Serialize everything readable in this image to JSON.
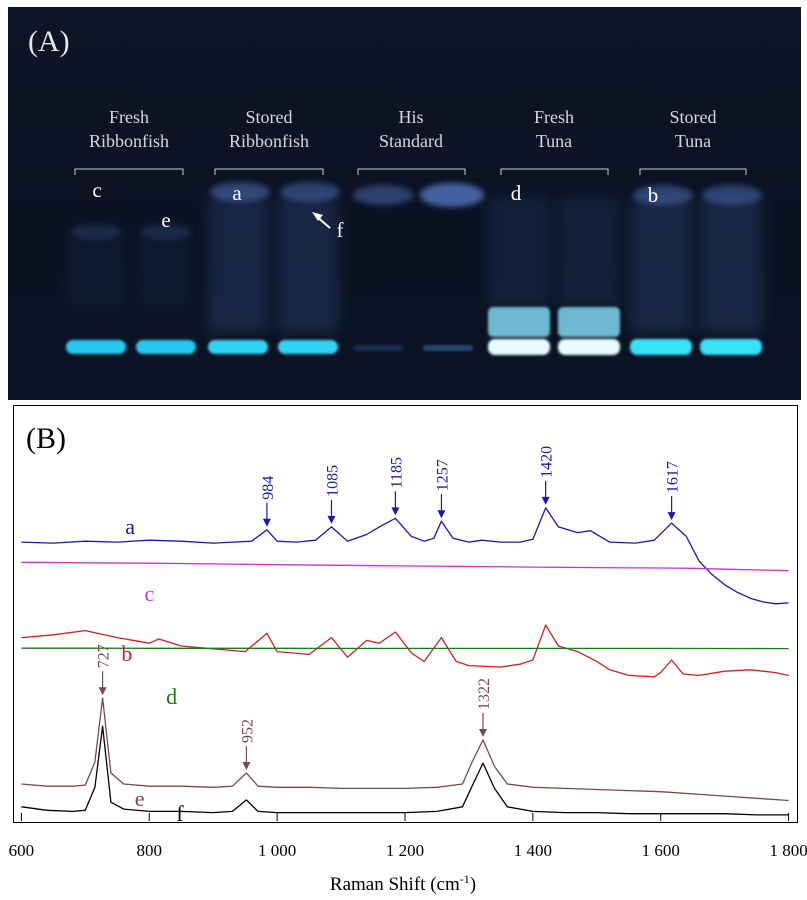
{
  "panel_a": {
    "label": "(A)",
    "groups": [
      {
        "line1": "Fresh",
        "line2": "Ribbonfish"
      },
      {
        "line1": "Stored",
        "line2": "Ribbonfish"
      },
      {
        "line1": "His",
        "line2": "Standard"
      },
      {
        "line1": "Fresh",
        "line2": "Tuna"
      },
      {
        "line1": "Stored",
        "line2": "Tuna"
      }
    ],
    "lane_letters": [
      "c",
      "e",
      "a",
      "f",
      "d",
      "b"
    ]
  },
  "chart_data": {
    "type": "line",
    "panel_label": "(B)",
    "xlabel_main": "Raman Shift (cm",
    "xlabel_sup": "-1",
    "xlabel_end": ")",
    "xlim": [
      590,
      1810
    ],
    "xticks": [
      600,
      800,
      1000,
      1200,
      1400,
      1600,
      1800
    ],
    "xtick_labels": [
      "600",
      "800",
      "1 000",
      "1 200",
      "1 400",
      "1 600",
      "1 800"
    ],
    "grid": false,
    "series": [
      {
        "name": "a",
        "color": "#1a1aa8",
        "x": [
          600,
          650,
          700,
          750,
          800,
          850,
          900,
          930,
          960,
          984,
          1000,
          1030,
          1060,
          1085,
          1110,
          1140,
          1160,
          1185,
          1210,
          1230,
          1245,
          1257,
          1275,
          1300,
          1320,
          1350,
          1380,
          1400,
          1420,
          1440,
          1470,
          1490,
          1520,
          1560,
          1590,
          1617,
          1640,
          1660,
          1680,
          1700,
          1720,
          1740,
          1760,
          1780,
          1800
        ],
        "y": [
          0.62,
          0.61,
          0.63,
          0.62,
          0.64,
          0.63,
          0.61,
          0.62,
          0.63,
          0.75,
          0.63,
          0.62,
          0.64,
          0.78,
          0.63,
          0.7,
          0.78,
          0.87,
          0.68,
          0.63,
          0.66,
          0.84,
          0.66,
          0.62,
          0.64,
          0.62,
          0.62,
          0.65,
          0.98,
          0.78,
          0.72,
          0.74,
          0.62,
          0.61,
          0.64,
          0.82,
          0.68,
          0.42,
          0.28,
          0.17,
          0.09,
          0.03,
          -0.01,
          -0.03,
          -0.02
        ]
      },
      {
        "name": "c",
        "color": "#cc33cc",
        "x": [
          600,
          700,
          800,
          900,
          1000,
          1100,
          1200,
          1300,
          1400,
          1500,
          1600,
          1650,
          1700,
          1750,
          1800
        ],
        "y": [
          0.58,
          0.55,
          0.52,
          0.47,
          0.42,
          0.38,
          0.34,
          0.3,
          0.26,
          0.23,
          0.2,
          0.18,
          0.12,
          0.07,
          0.02
        ]
      },
      {
        "name": "b",
        "color": "#cc2222",
        "x": [
          600,
          650,
          700,
          750,
          800,
          815,
          850,
          900,
          950,
          984,
          1000,
          1050,
          1085,
          1110,
          1140,
          1160,
          1185,
          1210,
          1230,
          1257,
          1280,
          1300,
          1350,
          1380,
          1400,
          1420,
          1440,
          1470,
          1500,
          1520,
          1550,
          1590,
          1600,
          1617,
          1635,
          1660,
          1700,
          1740,
          1780,
          1800
        ],
        "y": [
          0.62,
          0.66,
          0.72,
          0.62,
          0.54,
          0.6,
          0.5,
          0.46,
          0.42,
          0.68,
          0.42,
          0.38,
          0.62,
          0.34,
          0.58,
          0.54,
          0.7,
          0.4,
          0.28,
          0.62,
          0.28,
          0.22,
          0.2,
          0.24,
          0.3,
          0.8,
          0.5,
          0.42,
          0.28,
          0.16,
          0.08,
          0.06,
          0.12,
          0.3,
          0.1,
          0.08,
          0.14,
          0.16,
          0.12,
          0.08
        ]
      },
      {
        "name": "d",
        "color": "#1a7a1a",
        "x": [
          600,
          700,
          800,
          900,
          1000,
          1100,
          1200,
          1300,
          1400,
          1500,
          1600,
          1700,
          1800
        ],
        "y": [
          0.1,
          0.1,
          0.09,
          0.09,
          0.09,
          0.08,
          0.08,
          0.08,
          0.07,
          0.07,
          0.07,
          0.06,
          0.05
        ]
      },
      {
        "name": "e",
        "color": "#7a4a4a",
        "x": [
          600,
          640,
          680,
          700,
          715,
          727,
          740,
          760,
          800,
          850,
          900,
          930,
          952,
          970,
          1000,
          1050,
          1100,
          1150,
          1200,
          1250,
          1290,
          1305,
          1322,
          1340,
          1360,
          1400,
          1450,
          1500,
          1550,
          1600,
          1650,
          1700,
          1750,
          1800
        ],
        "y": [
          0.2,
          0.18,
          0.18,
          0.19,
          0.4,
          0.98,
          0.3,
          0.2,
          0.18,
          0.18,
          0.17,
          0.18,
          0.3,
          0.18,
          0.17,
          0.17,
          0.16,
          0.16,
          0.16,
          0.17,
          0.2,
          0.4,
          0.6,
          0.36,
          0.2,
          0.17,
          0.16,
          0.15,
          0.14,
          0.13,
          0.11,
          0.09,
          0.07,
          0.05
        ]
      },
      {
        "name": "f",
        "color": "#000000",
        "x": [
          600,
          640,
          680,
          700,
          715,
          727,
          740,
          760,
          800,
          850,
          900,
          930,
          952,
          970,
          1000,
          1050,
          1100,
          1150,
          1200,
          1250,
          1290,
          1305,
          1322,
          1340,
          1360,
          1400,
          1450,
          1500,
          1550,
          1600,
          1650,
          1700,
          1750,
          1800
        ],
        "y": [
          0.08,
          0.05,
          0.04,
          0.05,
          0.25,
          0.78,
          0.12,
          0.06,
          0.04,
          0.04,
          0.03,
          0.04,
          0.14,
          0.04,
          0.03,
          0.03,
          0.03,
          0.03,
          0.03,
          0.04,
          0.08,
          0.26,
          0.46,
          0.24,
          0.08,
          0.04,
          0.03,
          0.03,
          0.02,
          0.02,
          0.02,
          0.02,
          0.01,
          0.01
        ]
      }
    ],
    "annotations": [
      {
        "label": "984",
        "x": 984,
        "series": "a",
        "color": "#1a1aa8"
      },
      {
        "label": "1085",
        "x": 1085,
        "series": "a",
        "color": "#1a1aa8"
      },
      {
        "label": "1185",
        "x": 1185,
        "series": "a",
        "color": "#1a1aa8"
      },
      {
        "label": "1257",
        "x": 1257,
        "series": "a",
        "color": "#1a1aa8"
      },
      {
        "label": "1420",
        "x": 1420,
        "series": "a",
        "color": "#1a1aa8"
      },
      {
        "label": "1617",
        "x": 1617,
        "series": "a",
        "color": "#1a1aa8"
      },
      {
        "label": "727",
        "x": 727,
        "series": "e",
        "color": "#7a4a4a"
      },
      {
        "label": "952",
        "x": 952,
        "series": "e",
        "color": "#7a4a4a"
      },
      {
        "label": "1322",
        "x": 1322,
        "series": "e",
        "color": "#7a4a4a"
      }
    ]
  }
}
